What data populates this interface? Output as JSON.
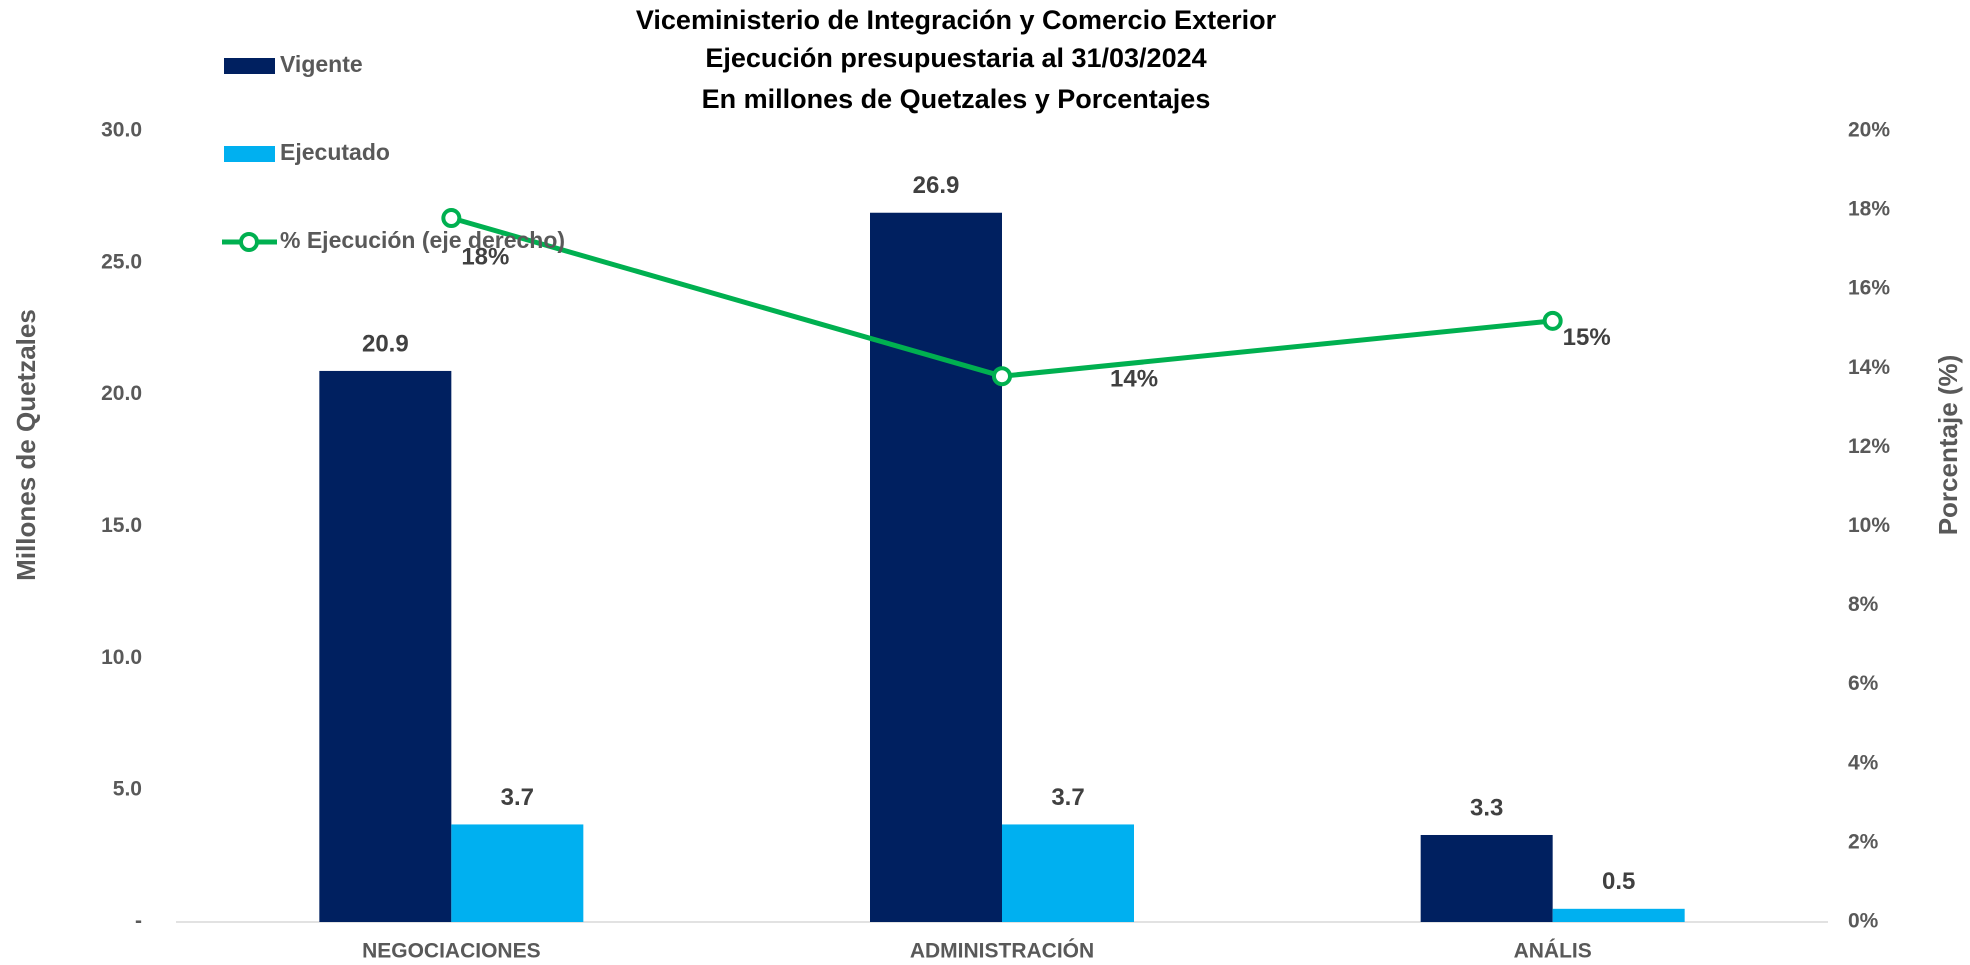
{
  "chart_data": {
    "type": "bar_line",
    "title": [
      "Viceministerio de Integración y Comercio Exterior",
      "Ejecución presupuestaria al 31/03/2024",
      "En millones de Quetzales y Porcentajes"
    ],
    "y_label": "Millones de Quetzales",
    "y2_label": "Porcentaje (%)",
    "categories": [
      "NEGOCIACIONES",
      "ADMINISTRACIÓN",
      "ANÁLIS"
    ],
    "series": [
      {
        "name": "Vigente",
        "type": "bar",
        "color": "#002060",
        "values": [
          20.9,
          26.9,
          3.3
        ]
      },
      {
        "name": "Ejecutado",
        "type": "bar",
        "color": "#00b0f0",
        "values": [
          3.7,
          3.7,
          0.5
        ]
      },
      {
        "name": "% Ejecución (eje derecho)",
        "type": "line",
        "axis": "y2",
        "color": "#00b050",
        "values": [
          17.8,
          13.8,
          15.2
        ],
        "value_labels": [
          "18%",
          "14%",
          "15%"
        ]
      }
    ],
    "ylim": [
      0,
      30
    ],
    "yticks": [
      {
        "value": 0,
        "label": "-"
      },
      {
        "value": 5,
        "label": "5.0"
      },
      {
        "value": 10,
        "label": "10.0"
      },
      {
        "value": 15,
        "label": "15.0"
      },
      {
        "value": 20,
        "label": "20.0"
      },
      {
        "value": 25,
        "label": "25.0"
      },
      {
        "value": 30,
        "label": "30.0"
      }
    ],
    "y2lim": [
      0,
      20
    ],
    "y2ticks": [
      {
        "value": 0,
        "label": "0%"
      },
      {
        "value": 2,
        "label": "2%"
      },
      {
        "value": 4,
        "label": "4%"
      },
      {
        "value": 6,
        "label": "6%"
      },
      {
        "value": 8,
        "label": "8%"
      },
      {
        "value": 10,
        "label": "10%"
      },
      {
        "value": 12,
        "label": "12%"
      },
      {
        "value": 14,
        "label": "14%"
      },
      {
        "value": 16,
        "label": "16%"
      },
      {
        "value": 18,
        "label": "18%"
      },
      {
        "value": 20,
        "label": "20%"
      }
    ],
    "grid": false,
    "legend": "top-left"
  }
}
